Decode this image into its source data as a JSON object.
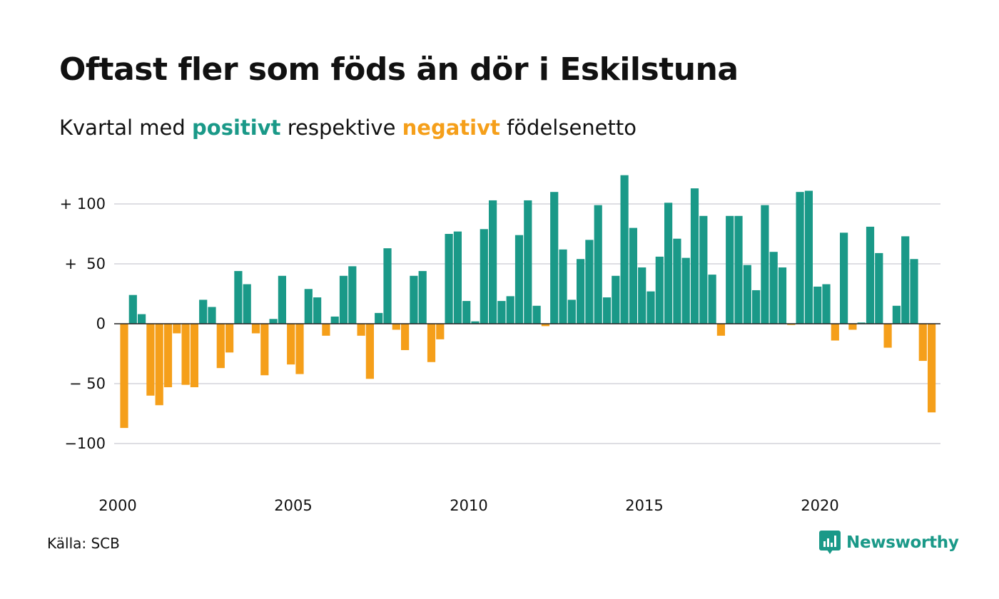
{
  "title": "Oftast fler som föds än dör i Eskilstuna",
  "subtitle": {
    "prefix": "Kvartal med ",
    "positive_word": "positivt",
    "middle": " respektive ",
    "negative_word": "negativt",
    "suffix": " födelsenetto"
  },
  "source": "Källa: SCB",
  "brand": "Newsworthy",
  "colors": {
    "positive": "#1a9988",
    "negative": "#f59f1a",
    "grid": "#dedee3",
    "text": "#111111"
  },
  "chart_data": {
    "type": "bar",
    "x_start": "2000 Q1",
    "ylim": [
      -120,
      130
    ],
    "grid": true,
    "y_ticks": [
      {
        "value": 100,
        "label": "+ 100"
      },
      {
        "value": 50,
        "label": "+  50"
      },
      {
        "value": 0,
        "label": "0"
      },
      {
        "value": -50,
        "label": "− 50"
      },
      {
        "value": -100,
        "label": "−100"
      }
    ],
    "x_ticks": [
      "2000",
      "2005",
      "2010",
      "2015",
      "2020"
    ],
    "values": [
      -87,
      24,
      8,
      -60,
      -68,
      -53,
      -8,
      -51,
      -53,
      20,
      14,
      -37,
      -24,
      44,
      33,
      -8,
      -43,
      4,
      40,
      -34,
      -42,
      29,
      22,
      -10,
      6,
      40,
      48,
      -10,
      -46,
      9,
      63,
      -5,
      -22,
      40,
      44,
      -32,
      -13,
      75,
      77,
      19,
      2,
      79,
      103,
      19,
      23,
      74,
      103,
      15,
      -2,
      110,
      62,
      20,
      54,
      70,
      99,
      22,
      40,
      124,
      80,
      47,
      27,
      56,
      101,
      71,
      55,
      113,
      90,
      41,
      -10,
      90,
      90,
      49,
      28,
      99,
      60,
      47,
      -1,
      110,
      111,
      31,
      33,
      -14,
      76,
      -5,
      1,
      81,
      59,
      -20,
      15,
      73,
      54,
      -31,
      -74
    ]
  }
}
